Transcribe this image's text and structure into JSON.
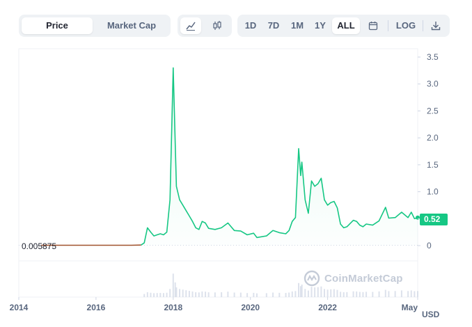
{
  "toolbar": {
    "tabs": [
      {
        "label": "Price",
        "active": true
      },
      {
        "label": "Market Cap",
        "active": false
      }
    ],
    "chart_style_icons": [
      "line-chart-icon",
      "candlestick-icon"
    ],
    "ranges": [
      "1D",
      "7D",
      "1M",
      "1Y",
      "ALL"
    ],
    "active_range": "ALL",
    "calendar_icon": "calendar-icon",
    "log_label": "LOG",
    "download_icon": "download-icon"
  },
  "currency_label": "USD",
  "current_price_label": "0.52",
  "start_price_label": "0.005875",
  "watermark": "CoinMarketCap",
  "colors": {
    "up": "#16c784",
    "pre_baseline": "#a0522d",
    "accent": "#16c784",
    "grid": "#eff2f5"
  },
  "chart_data": {
    "type": "line",
    "title": "",
    "xlabel": "",
    "ylabel": "",
    "x_ticks": [
      "2014",
      "2016",
      "2018",
      "2020",
      "2022",
      "May"
    ],
    "y_ticks": [
      "0",
      "0.5",
      "1.0",
      "1.5",
      "2.0",
      "2.5",
      "3.0",
      "3.5"
    ],
    "ylim": [
      0,
      3.5
    ],
    "xlim": [
      "2014-01",
      "2024-05"
    ],
    "current_value": 0.52,
    "start_value": 0.005875,
    "series": [
      {
        "color": "#16c784",
        "points": [
          [
            "2014-08",
            0.006
          ],
          [
            "2015-03",
            0.006
          ],
          [
            "2016-01",
            0.006
          ],
          [
            "2016-12",
            0.006
          ],
          [
            "2017-03",
            0.01
          ],
          [
            "2017-04",
            0.05
          ],
          [
            "2017-05",
            0.33
          ],
          [
            "2017-06",
            0.25
          ],
          [
            "2017-07",
            0.18
          ],
          [
            "2017-08",
            0.2
          ],
          [
            "2017-09",
            0.22
          ],
          [
            "2017-10",
            0.2
          ],
          [
            "2017-11",
            0.25
          ],
          [
            "2017-12",
            0.85
          ],
          [
            "2018-01",
            3.3
          ],
          [
            "2018-01-20",
            1.9
          ],
          [
            "2018-02",
            1.1
          ],
          [
            "2018-03",
            0.85
          ],
          [
            "2018-04",
            0.75
          ],
          [
            "2018-05",
            0.65
          ],
          [
            "2018-06",
            0.55
          ],
          [
            "2018-07",
            0.45
          ],
          [
            "2018-08",
            0.33
          ],
          [
            "2018-09",
            0.3
          ],
          [
            "2018-10",
            0.45
          ],
          [
            "2018-11",
            0.42
          ],
          [
            "2018-12",
            0.32
          ],
          [
            "2019-02",
            0.3
          ],
          [
            "2019-04",
            0.33
          ],
          [
            "2019-06",
            0.42
          ],
          [
            "2019-08",
            0.28
          ],
          [
            "2019-10",
            0.27
          ],
          [
            "2019-12",
            0.2
          ],
          [
            "2020-02",
            0.23
          ],
          [
            "2020-03",
            0.15
          ],
          [
            "2020-06",
            0.18
          ],
          [
            "2020-08",
            0.28
          ],
          [
            "2020-10",
            0.24
          ],
          [
            "2020-12",
            0.22
          ],
          [
            "2021-01",
            0.28
          ],
          [
            "2021-02",
            0.45
          ],
          [
            "2021-03",
            0.52
          ],
          [
            "2021-04",
            1.8
          ],
          [
            "2021-04-20",
            1.3
          ],
          [
            "2021-05",
            1.55
          ],
          [
            "2021-06",
            0.85
          ],
          [
            "2021-07",
            0.6
          ],
          [
            "2021-08",
            1.2
          ],
          [
            "2021-09",
            1.1
          ],
          [
            "2021-10",
            1.15
          ],
          [
            "2021-11",
            1.25
          ],
          [
            "2021-12",
            0.85
          ],
          [
            "2022-01",
            0.75
          ],
          [
            "2022-02",
            0.8
          ],
          [
            "2022-03",
            0.82
          ],
          [
            "2022-04",
            0.7
          ],
          [
            "2022-05",
            0.4
          ],
          [
            "2022-06",
            0.33
          ],
          [
            "2022-07",
            0.35
          ],
          [
            "2022-09",
            0.47
          ],
          [
            "2022-10",
            0.45
          ],
          [
            "2022-11",
            0.38
          ],
          [
            "2022-12",
            0.35
          ],
          [
            "2023-01",
            0.4
          ],
          [
            "2023-03",
            0.38
          ],
          [
            "2023-05",
            0.46
          ],
          [
            "2023-07",
            0.71
          ],
          [
            "2023-08",
            0.51
          ],
          [
            "2023-10",
            0.52
          ],
          [
            "2023-12",
            0.62
          ],
          [
            "2024-02",
            0.52
          ],
          [
            "2024-03",
            0.62
          ],
          [
            "2024-04",
            0.5
          ],
          [
            "2024-05",
            0.52
          ]
        ]
      }
    ],
    "volume_panel": true
  }
}
